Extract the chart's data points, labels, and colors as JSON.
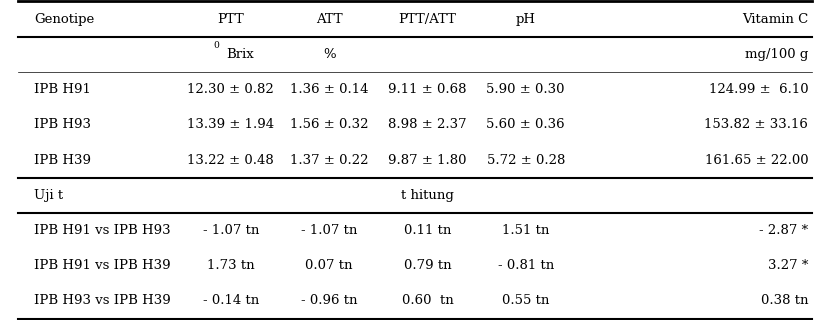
{
  "headers": [
    "Genotipe",
    "PTT",
    "ATT",
    "PTT/ATT",
    "pH",
    "Vitamin C"
  ],
  "subheaders": [
    "",
    "°Brix",
    "%",
    "",
    "",
    "mg/100 g"
  ],
  "data_rows": [
    [
      "IPB H91",
      "12.30 ± 0.82",
      "1.36 ± 0.14",
      "9.11 ± 0.68",
      "5.90 ± 0.30",
      "124.99 ±  6.10"
    ],
    [
      "IPB H93",
      "13.39 ± 1.94",
      "1.56 ± 0.32",
      "8.98 ± 2.37",
      "5.60 ± 0.36",
      "153.82 ± 33.16"
    ],
    [
      "IPB H39",
      "13.22 ± 0.48",
      "1.37 ± 0.22",
      "9.87 ± 1.80",
      "5.72 ± 0.28",
      "161.65 ± 22.00"
    ]
  ],
  "separator_row": [
    "Uji t",
    "",
    "",
    "t hitung",
    "",
    ""
  ],
  "uji_rows": [
    [
      "IPB H91 vs IPB H93",
      "- 1.07 tn",
      "- 1.07 tn",
      "0.11 tn",
      "1.51 tn",
      "- 2.87 *"
    ],
    [
      "IPB H91 vs IPB H39",
      "1.73 tn",
      "0.07 tn",
      "0.79 tn",
      "- 0.81 tn",
      "3.27 *"
    ],
    [
      "IPB H93 vs IPB H39",
      "- 0.14 tn",
      "- 0.96 tn",
      "0.60  tn",
      "0.55 tn",
      "0.38 tn"
    ]
  ],
  "bg_color": "#ffffff",
  "text_color": "#000000",
  "fontsize": 9.5
}
